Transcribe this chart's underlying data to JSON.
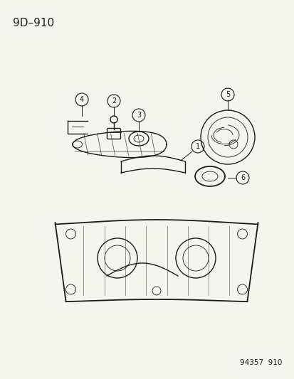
{
  "title": "9D–910",
  "footer": "94357  910",
  "bg_color": "#f5f5f0",
  "line_color": "#1a1a1a",
  "title_fontsize": 11,
  "footer_fontsize": 7.5,
  "label_fontsize": 7,
  "label_circle_r": 0.018
}
